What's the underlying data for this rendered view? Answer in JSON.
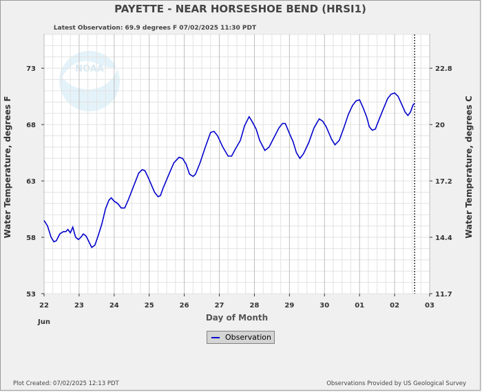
{
  "chart_data": {
    "type": "line",
    "title": "PAYETTE - NEAR HORSESHOE BEND  (HRSI1)",
    "subtitle": "Latest Observation: 69.9 degrees F 07/02/2025 11:30 PDT",
    "xlabel": "Day of Month",
    "ylabel_left": "Water Temperature, degrees F",
    "ylabel_right": "Water Temperature, degrees C",
    "x_month_label": "Jun",
    "x_tick_labels": [
      "22",
      "23",
      "24",
      "25",
      "26",
      "27",
      "28",
      "29",
      "30",
      "01",
      "02",
      "03"
    ],
    "xlim": [
      0,
      11
    ],
    "ylim": [
      53,
      76
    ],
    "y_left_ticks": [
      "53",
      "58",
      "63",
      "68",
      "73"
    ],
    "y_right_ticks": [
      "11.7",
      "14.4",
      "17.2",
      "20",
      "22.8"
    ],
    "latest_observation_x": 10.57,
    "legend": [
      "Observation"
    ],
    "series": [
      {
        "name": "Observation",
        "color": "#0000cc",
        "points": [
          [
            0.0,
            59.5
          ],
          [
            0.1,
            59.0
          ],
          [
            0.2,
            58.0
          ],
          [
            0.28,
            57.6
          ],
          [
            0.35,
            57.7
          ],
          [
            0.45,
            58.3
          ],
          [
            0.55,
            58.5
          ],
          [
            0.62,
            58.5
          ],
          [
            0.68,
            58.7
          ],
          [
            0.75,
            58.4
          ],
          [
            0.82,
            58.9
          ],
          [
            0.9,
            58.0
          ],
          [
            0.98,
            57.8
          ],
          [
            1.05,
            58.0
          ],
          [
            1.12,
            58.3
          ],
          [
            1.2,
            58.1
          ],
          [
            1.28,
            57.6
          ],
          [
            1.36,
            57.1
          ],
          [
            1.45,
            57.3
          ],
          [
            1.55,
            58.2
          ],
          [
            1.65,
            59.2
          ],
          [
            1.75,
            60.5
          ],
          [
            1.85,
            61.3
          ],
          [
            1.92,
            61.5
          ],
          [
            2.0,
            61.2
          ],
          [
            2.1,
            61.0
          ],
          [
            2.2,
            60.6
          ],
          [
            2.3,
            60.6
          ],
          [
            2.4,
            61.3
          ],
          [
            2.55,
            62.5
          ],
          [
            2.7,
            63.7
          ],
          [
            2.8,
            64.0
          ],
          [
            2.88,
            63.9
          ],
          [
            3.0,
            63.1
          ],
          [
            3.15,
            62.0
          ],
          [
            3.25,
            61.6
          ],
          [
            3.32,
            61.7
          ],
          [
            3.4,
            62.4
          ],
          [
            3.55,
            63.5
          ],
          [
            3.7,
            64.6
          ],
          [
            3.85,
            65.1
          ],
          [
            3.95,
            65.0
          ],
          [
            4.05,
            64.5
          ],
          [
            4.15,
            63.6
          ],
          [
            4.25,
            63.4
          ],
          [
            4.32,
            63.6
          ],
          [
            4.45,
            64.6
          ],
          [
            4.6,
            66.0
          ],
          [
            4.75,
            67.3
          ],
          [
            4.85,
            67.4
          ],
          [
            4.95,
            67.0
          ],
          [
            5.1,
            66.0
          ],
          [
            5.25,
            65.2
          ],
          [
            5.35,
            65.2
          ],
          [
            5.45,
            65.8
          ],
          [
            5.6,
            66.6
          ],
          [
            5.72,
            67.9
          ],
          [
            5.85,
            68.7
          ],
          [
            5.93,
            68.3
          ],
          [
            6.05,
            67.6
          ],
          [
            6.15,
            66.6
          ],
          [
            6.3,
            65.7
          ],
          [
            6.42,
            66.0
          ],
          [
            6.55,
            66.8
          ],
          [
            6.7,
            67.7
          ],
          [
            6.8,
            68.1
          ],
          [
            6.88,
            68.1
          ],
          [
            7.0,
            67.2
          ],
          [
            7.1,
            66.5
          ],
          [
            7.2,
            65.5
          ],
          [
            7.3,
            65.0
          ],
          [
            7.4,
            65.4
          ],
          [
            7.55,
            66.4
          ],
          [
            7.7,
            67.7
          ],
          [
            7.85,
            68.5
          ],
          [
            7.95,
            68.3
          ],
          [
            8.05,
            67.8
          ],
          [
            8.2,
            66.7
          ],
          [
            8.3,
            66.2
          ],
          [
            8.42,
            66.6
          ],
          [
            8.55,
            67.7
          ],
          [
            8.68,
            68.9
          ],
          [
            8.8,
            69.7
          ],
          [
            8.9,
            70.1
          ],
          [
            9.0,
            70.2
          ],
          [
            9.1,
            69.5
          ],
          [
            9.2,
            68.7
          ],
          [
            9.28,
            67.8
          ],
          [
            9.36,
            67.5
          ],
          [
            9.45,
            67.6
          ],
          [
            9.55,
            68.4
          ],
          [
            9.68,
            69.4
          ],
          [
            9.8,
            70.3
          ],
          [
            9.9,
            70.7
          ],
          [
            10.0,
            70.8
          ],
          [
            10.1,
            70.5
          ],
          [
            10.2,
            69.8
          ],
          [
            10.3,
            69.1
          ],
          [
            10.38,
            68.8
          ],
          [
            10.45,
            69.1
          ],
          [
            10.52,
            69.7
          ],
          [
            10.57,
            69.9
          ]
        ]
      }
    ]
  },
  "footer": {
    "left": "Plot Created: 07/02/2025 12:13 PDT",
    "right": "Observations Provided by US Geological Survey"
  },
  "logo_text": "NOAA"
}
